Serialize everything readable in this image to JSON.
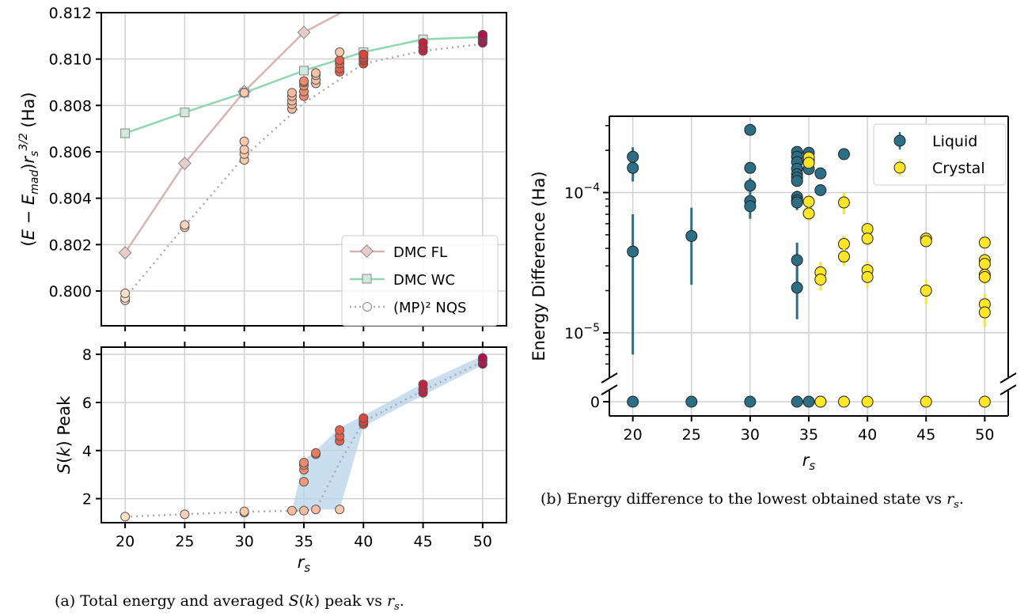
{
  "captions": {
    "a": "(a) Total energy and averaged S(k) peak vs r_s.",
    "b": "(b) Energy difference to the lowest obtained state vs r_s."
  },
  "chart_data": [
    {
      "id": "a_top",
      "type": "line",
      "xlabel": "",
      "ylabel": "(E − E_mad) r_s^{3/2} (Ha)",
      "xlim": [
        18,
        52
      ],
      "ylim": [
        0.7985,
        0.812
      ],
      "x_ticks": [
        20,
        25,
        30,
        35,
        40,
        45,
        50
      ],
      "y_ticks": [
        "0.800",
        "0.802",
        "0.804",
        "0.806",
        "0.808",
        "0.810",
        "0.812"
      ],
      "grid": true,
      "legend_position": "lower-right",
      "series": [
        {
          "name": "DMC FL",
          "color": "#d9b3b3",
          "marker": "diamond",
          "x": [
            20,
            25,
            30,
            35,
            38.5
          ],
          "y": [
            0.80165,
            0.8055,
            0.8086,
            0.81115,
            0.8121
          ]
        },
        {
          "name": "DMC WC",
          "color": "#8fd6b3",
          "marker": "square",
          "x": [
            20,
            25,
            30,
            35,
            40,
            45,
            50
          ],
          "y": [
            0.8068,
            0.8077,
            0.80855,
            0.8095,
            0.8103,
            0.81085,
            0.81095
          ]
        },
        {
          "name": "(MP)² NQS",
          "color": "#aaaaaa",
          "marker": "circle",
          "x": [
            20,
            25,
            30,
            35,
            40,
            45,
            50
          ],
          "y": [
            0.7997,
            0.8028,
            0.8058,
            0.8081,
            0.8098,
            0.81035,
            0.81065
          ]
        }
      ],
      "samples": [
        {
          "x": 20,
          "y": 0.7996,
          "c": "#fde0c8"
        },
        {
          "x": 20,
          "y": 0.7997,
          "c": "#fde0c8"
        },
        {
          "x": 20,
          "y": 0.7999,
          "c": "#fde0c8"
        },
        {
          "x": 25,
          "y": 0.80275,
          "c": "#fcd2b6"
        },
        {
          "x": 25,
          "y": 0.80285,
          "c": "#fcd2b6"
        },
        {
          "x": 30,
          "y": 0.80565,
          "c": "#fbc9ad"
        },
        {
          "x": 30,
          "y": 0.8059,
          "c": "#fbc9ad"
        },
        {
          "x": 30,
          "y": 0.8061,
          "c": "#fbc9ad"
        },
        {
          "x": 30,
          "y": 0.80645,
          "c": "#fbc9ad"
        },
        {
          "x": 30,
          "y": 0.80855,
          "c": "#fbc9ad"
        },
        {
          "x": 34,
          "y": 0.80785,
          "c": "#f9bba0"
        },
        {
          "x": 34,
          "y": 0.80805,
          "c": "#f9bba0"
        },
        {
          "x": 34,
          "y": 0.8082,
          "c": "#f9bba0"
        },
        {
          "x": 34,
          "y": 0.8084,
          "c": "#f9bba0"
        },
        {
          "x": 34,
          "y": 0.80855,
          "c": "#f9bba0"
        },
        {
          "x": 35,
          "y": 0.8084,
          "c": "#f08a6a"
        },
        {
          "x": 35,
          "y": 0.8086,
          "c": "#f08a6a"
        },
        {
          "x": 35,
          "y": 0.80885,
          "c": "#f08a6a"
        },
        {
          "x": 35,
          "y": 0.809,
          "c": "#f08a6a"
        },
        {
          "x": 35,
          "y": 0.80905,
          "c": "#f08a6a"
        },
        {
          "x": 36,
          "y": 0.80895,
          "c": "#f6c2a6"
        },
        {
          "x": 36,
          "y": 0.8091,
          "c": "#f6c2a6"
        },
        {
          "x": 36,
          "y": 0.8093,
          "c": "#f6c2a6"
        },
        {
          "x": 36,
          "y": 0.8094,
          "c": "#f6c2a6"
        },
        {
          "x": 38,
          "y": 0.80945,
          "c": "#e8604a"
        },
        {
          "x": 38,
          "y": 0.8096,
          "c": "#e8604a"
        },
        {
          "x": 38,
          "y": 0.8098,
          "c": "#e8604a"
        },
        {
          "x": 38,
          "y": 0.80995,
          "c": "#e8604a"
        },
        {
          "x": 38,
          "y": 0.8103,
          "c": "#f9c9a9"
        },
        {
          "x": 40,
          "y": 0.8098,
          "c": "#e0453a"
        },
        {
          "x": 40,
          "y": 0.80995,
          "c": "#e0453a"
        },
        {
          "x": 40,
          "y": 0.81005,
          "c": "#e0453a"
        },
        {
          "x": 40,
          "y": 0.8102,
          "c": "#e0453a"
        },
        {
          "x": 45,
          "y": 0.81035,
          "c": "#c8213d"
        },
        {
          "x": 45,
          "y": 0.8105,
          "c": "#c8213d"
        },
        {
          "x": 45,
          "y": 0.8107,
          "c": "#c8213d"
        },
        {
          "x": 50,
          "y": 0.8107,
          "c": "#b0124e"
        },
        {
          "x": 50,
          "y": 0.81085,
          "c": "#b0124e"
        },
        {
          "x": 50,
          "y": 0.81095,
          "c": "#b0124e"
        },
        {
          "x": 50,
          "y": 0.81105,
          "c": "#b0124e"
        }
      ]
    },
    {
      "id": "a_bottom",
      "type": "scatter",
      "xlabel": "r_s",
      "ylabel": "S(k) Peak",
      "xlim": [
        18,
        52
      ],
      "ylim": [
        1.0,
        8.3
      ],
      "x_ticks": [
        20,
        25,
        30,
        35,
        40,
        45,
        50
      ],
      "y_ticks": [
        2,
        4,
        6,
        8
      ],
      "grid": true,
      "band": {
        "color": "#b7d3e9",
        "upper": [
          [
            34,
            1.5
          ],
          [
            35,
            3.6
          ],
          [
            36,
            4.0
          ],
          [
            38,
            4.95
          ],
          [
            40,
            5.45
          ],
          [
            45,
            6.8
          ],
          [
            50,
            7.95
          ]
        ],
        "lower": [
          [
            50,
            7.55
          ],
          [
            45,
            6.3
          ],
          [
            40,
            5.0
          ],
          [
            38,
            1.55
          ],
          [
            36,
            1.55
          ],
          [
            34,
            1.45
          ]
        ]
      },
      "mean_line": {
        "x": [
          20,
          25,
          30,
          34,
          35,
          36,
          38,
          40,
          45,
          50
        ],
        "y": [
          1.25,
          1.35,
          1.45,
          1.5,
          1.5,
          1.55,
          3.5,
          5.2,
          6.5,
          7.7
        ]
      },
      "samples": [
        {
          "x": 20,
          "y": 1.25,
          "c": "#fde0c8"
        },
        {
          "x": 25,
          "y": 1.35,
          "c": "#fcd2b6"
        },
        {
          "x": 30,
          "y": 1.42,
          "c": "#fbc9ad"
        },
        {
          "x": 30,
          "y": 1.47,
          "c": "#fbc9ad"
        },
        {
          "x": 34,
          "y": 1.5,
          "c": "#f9bba0"
        },
        {
          "x": 35,
          "y": 1.5,
          "c": "#f9bba0"
        },
        {
          "x": 35,
          "y": 2.7,
          "c": "#f39a7a"
        },
        {
          "x": 35,
          "y": 3.2,
          "c": "#f08a6a"
        },
        {
          "x": 35,
          "y": 3.4,
          "c": "#f08a6a"
        },
        {
          "x": 35,
          "y": 3.5,
          "c": "#f08a6a"
        },
        {
          "x": 36,
          "y": 1.55,
          "c": "#f9bba0"
        },
        {
          "x": 36,
          "y": 3.85,
          "c": "#ec7a5c"
        },
        {
          "x": 36,
          "y": 3.9,
          "c": "#ec7a5c"
        },
        {
          "x": 38,
          "y": 1.55,
          "c": "#f9c9a9"
        },
        {
          "x": 38,
          "y": 4.4,
          "c": "#e8604a"
        },
        {
          "x": 38,
          "y": 4.6,
          "c": "#e8604a"
        },
        {
          "x": 38,
          "y": 4.85,
          "c": "#e8604a"
        },
        {
          "x": 40,
          "y": 5.1,
          "c": "#e0453a"
        },
        {
          "x": 40,
          "y": 5.2,
          "c": "#e0453a"
        },
        {
          "x": 40,
          "y": 5.35,
          "c": "#e0453a"
        },
        {
          "x": 45,
          "y": 6.4,
          "c": "#c8213d"
        },
        {
          "x": 45,
          "y": 6.55,
          "c": "#c8213d"
        },
        {
          "x": 45,
          "y": 6.75,
          "c": "#c8213d"
        },
        {
          "x": 50,
          "y": 7.6,
          "c": "#b0124e"
        },
        {
          "x": 50,
          "y": 7.75,
          "c": "#b0124e"
        },
        {
          "x": 50,
          "y": 7.85,
          "c": "#b0124e"
        }
      ]
    },
    {
      "id": "b",
      "type": "scatter",
      "xlabel": "r_s",
      "ylabel": "Energy Difference (Ha)",
      "xscale": "log-with-zero-break",
      "xlim": [
        18,
        52
      ],
      "ylim_log": [
        5.5e-06,
        0.00035
      ],
      "x_ticks": [
        20,
        25,
        30,
        35,
        40,
        45,
        50
      ],
      "y_ticks": [
        {
          "label": "0",
          "value": 0
        },
        {
          "label": "10^-5",
          "value": 1e-05
        },
        {
          "label": "10^-4",
          "value": 0.0001
        }
      ],
      "grid": true,
      "legend_position": "upper-right",
      "series": [
        {
          "name": "Liquid",
          "color": "#2a6f86",
          "points": [
            {
              "x": 20,
              "y": 0.00018,
              "e": 3e-05
            },
            {
              "x": 20,
              "y": 0.00015,
              "e": 3e-05
            },
            {
              "x": 20,
              "y": 3.8e-05,
              "lo": 7e-06,
              "hi": 7e-05
            },
            {
              "x": 20,
              "y": 0
            },
            {
              "x": 25,
              "y": 4.9e-05,
              "lo": 2.2e-05,
              "hi": 7.8e-05
            },
            {
              "x": 25,
              "y": 0
            },
            {
              "x": 30,
              "y": 0.00028,
              "e": 1e-05
            },
            {
              "x": 30,
              "y": 0.00015,
              "e": 1e-05
            },
            {
              "x": 30,
              "y": 0.000112,
              "e": 1.5e-05
            },
            {
              "x": 30,
              "y": 8.7e-05,
              "e": 1.5e-05
            },
            {
              "x": 30,
              "y": 8e-05,
              "e": 1.5e-05
            },
            {
              "x": 30,
              "y": 0
            },
            {
              "x": 34,
              "y": 0.000195,
              "e": 1e-05
            },
            {
              "x": 34,
              "y": 0.00018,
              "e": 1e-05
            },
            {
              "x": 34,
              "y": 0.000165,
              "e": 1e-05
            },
            {
              "x": 34,
              "y": 0.000148,
              "e": 1e-05
            },
            {
              "x": 34,
              "y": 0.000135,
              "e": 1e-05
            },
            {
              "x": 34,
              "y": 0.000128,
              "e": 1e-05
            },
            {
              "x": 34,
              "y": 0.000121,
              "e": 1e-05
            },
            {
              "x": 34,
              "y": 9.3e-05,
              "e": 1e-05
            },
            {
              "x": 34,
              "y": 8.8e-05,
              "e": 1e-05
            },
            {
              "x": 34,
              "y": 8.5e-05,
              "e": 1e-05
            },
            {
              "x": 34,
              "y": 3.3e-05,
              "lo": 2.3e-05,
              "hi": 4.4e-05
            },
            {
              "x": 34,
              "y": 2.1e-05,
              "lo": 1.25e-05,
              "hi": 2.9e-05
            },
            {
              "x": 34,
              "y": 0
            },
            {
              "x": 35,
              "y": 0.000192,
              "e": 1e-05
            },
            {
              "x": 35,
              "y": 0.00017,
              "e": 1e-05
            },
            {
              "x": 35,
              "y": 0.000147,
              "e": 1e-05
            },
            {
              "x": 35,
              "y": 0
            },
            {
              "x": 36,
              "y": 0.000137,
              "e": 8e-06
            },
            {
              "x": 36,
              "y": 0.000104,
              "e": 8e-06
            },
            {
              "x": 36,
              "y": 0
            },
            {
              "x": 38,
              "y": 0.000188,
              "e": 8e-06
            }
          ]
        },
        {
          "name": "Crystal",
          "color": "#fde725",
          "points": [
            {
              "x": 35,
              "y": 0.000178,
              "e": 1e-05
            },
            {
              "x": 35,
              "y": 0.000163,
              "e": 1e-05
            },
            {
              "x": 35,
              "y": 8.6e-05,
              "e": 1e-05
            },
            {
              "x": 35,
              "y": 7.1e-05,
              "e": 8e-06
            },
            {
              "x": 36,
              "y": 2.7e-05,
              "e": 5e-06
            },
            {
              "x": 36,
              "y": 2.4e-05,
              "e": 4e-06
            },
            {
              "x": 36,
              "y": 0
            },
            {
              "x": 38,
              "y": 8.5e-05,
              "e": 1.5e-05
            },
            {
              "x": 38,
              "y": 4.3e-05,
              "e": 6e-06
            },
            {
              "x": 38,
              "y": 3.5e-05,
              "e": 5e-06
            },
            {
              "x": 38,
              "y": 0
            },
            {
              "x": 40,
              "y": 5.5e-05,
              "e": 5e-06
            },
            {
              "x": 40,
              "y": 4.7e-05,
              "e": 5e-06
            },
            {
              "x": 40,
              "y": 2.8e-05,
              "e": 4e-06
            },
            {
              "x": 40,
              "y": 2.5e-05,
              "e": 4e-06
            },
            {
              "x": 40,
              "y": 0
            },
            {
              "x": 45,
              "y": 4.7e-05,
              "e": 4e-06
            },
            {
              "x": 45,
              "y": 4.5e-05,
              "e": 4e-06
            },
            {
              "x": 45,
              "y": 2e-05,
              "e": 4e-06
            },
            {
              "x": 45,
              "y": 0
            },
            {
              "x": 50,
              "y": 4.4e-05,
              "e": 4e-06
            },
            {
              "x": 50,
              "y": 3.3e-05,
              "e": 4e-06
            },
            {
              "x": 50,
              "y": 3.1e-05,
              "e": 4e-06
            },
            {
              "x": 50,
              "y": 2.6e-05,
              "e": 3e-06
            },
            {
              "x": 50,
              "y": 2.5e-05,
              "e": 3e-06
            },
            {
              "x": 50,
              "y": 1.6e-05,
              "e": 3e-06
            },
            {
              "x": 50,
              "y": 1.4e-05,
              "e": 3e-06
            },
            {
              "x": 50,
              "y": 0
            }
          ]
        }
      ]
    }
  ]
}
